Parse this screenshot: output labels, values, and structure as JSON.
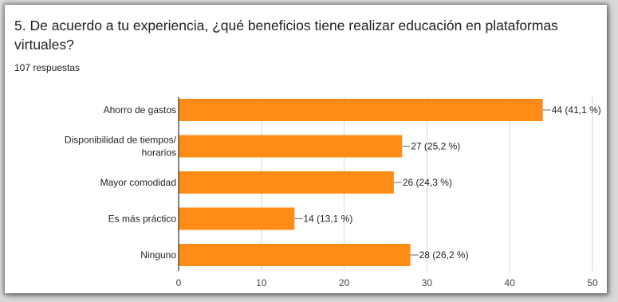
{
  "question": {
    "title": "5. De acuerdo a tu experiencia, ¿qué beneficios tiene realizar educación en plataformas virtuales?",
    "responses": "107 respuestas"
  },
  "colors": {
    "bar": "#ff8c16",
    "grid": "#d6d6d6",
    "axis": "#333333",
    "leader": "#666666"
  },
  "chart_data": {
    "type": "bar",
    "orientation": "horizontal",
    "categories": [
      [
        "Ahorro de gastos"
      ],
      [
        "Disponibilidad de tiempos/",
        "horarios"
      ],
      [
        "Mayor comodidad"
      ],
      [
        "Es más práctico"
      ],
      [
        "Ninguno"
      ]
    ],
    "values": [
      44,
      27,
      26,
      14,
      28
    ],
    "data_labels": [
      "44 (41,1 %)",
      "27 (25,2 %)",
      "26 (24,3 %)",
      "14 (13,1 %)",
      "28 (26,2 %)"
    ],
    "xlim": [
      0,
      50
    ],
    "xticks": [
      0,
      10,
      20,
      30,
      40,
      50
    ],
    "grid": true,
    "title": "",
    "xlabel": "",
    "ylabel": ""
  }
}
